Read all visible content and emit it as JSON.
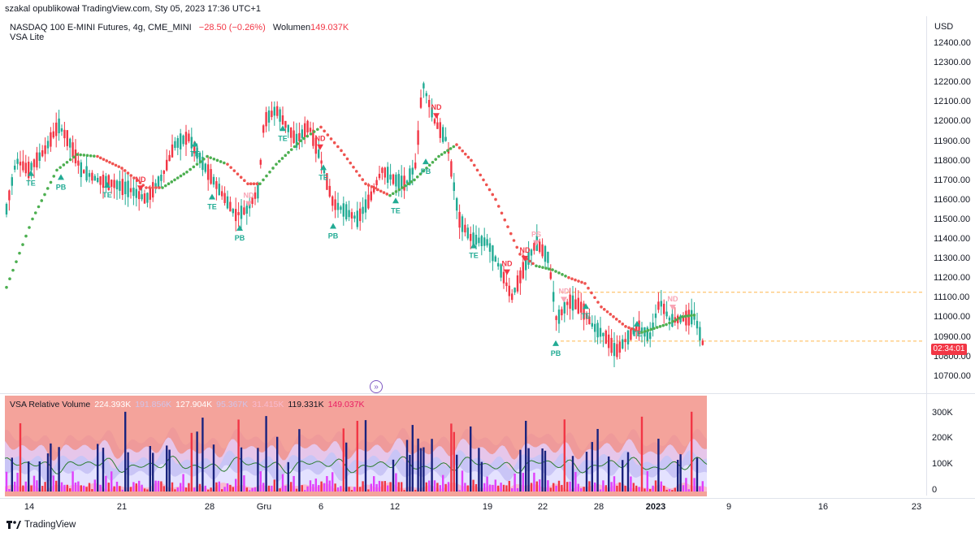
{
  "attribution": "szakal opublikował TradingView.com, Sty 05, 2023 17:36 UTC+1",
  "legend": {
    "symbol": "NASDAQ 100 E-MINI Futures, 4g, CME_MINI",
    "change": "−28.50 (−0.26%)",
    "volume_label": "Wolumen",
    "volume_value": "149.037K",
    "indicator": "VSA Lite"
  },
  "price_axis": {
    "currency": "USD",
    "ticks": [
      "12400.00",
      "12300.00",
      "12200.00",
      "12100.00",
      "12000.00",
      "11900.00",
      "11800.00",
      "11700.00",
      "11600.00",
      "11500.00",
      "11400.00",
      "11300.00",
      "11200.00",
      "11100.00",
      "11000.00",
      "10900.00",
      "10800.00",
      "10700.00"
    ],
    "countdown": "02:34:01"
  },
  "volume_pane": {
    "title": "VSA Relative Volume",
    "values": [
      {
        "text": "224.393K",
        "color": "#ffffff"
      },
      {
        "text": "191.856K",
        "color": "#d1c4e9"
      },
      {
        "text": "127.904K",
        "color": "#ffffff"
      },
      {
        "text": "95.367K",
        "color": "#d1c4e9"
      },
      {
        "text": "31.415K",
        "color": "#f8bbd0"
      },
      {
        "text": "119.331K",
        "color": "#131722"
      },
      {
        "text": "149.037K",
        "color": "#e91e63"
      }
    ],
    "ticks": [
      "300K",
      "200K",
      "100K",
      "0"
    ]
  },
  "time_axis": [
    {
      "label": "14",
      "bold": false
    },
    {
      "label": "21",
      "bold": false
    },
    {
      "label": "28",
      "bold": false
    },
    {
      "label": "Gru",
      "bold": false
    },
    {
      "label": "6",
      "bold": false
    },
    {
      "label": "12",
      "bold": false
    },
    {
      "label": "19",
      "bold": false
    },
    {
      "label": "22",
      "bold": false
    },
    {
      "label": "28",
      "bold": false
    },
    {
      "label": "2023",
      "bold": true
    },
    {
      "label": "9",
      "bold": false
    },
    {
      "label": "16",
      "bold": false
    },
    {
      "label": "23",
      "bold": false
    }
  ],
  "signals": [
    {
      "text": "TE",
      "color": "#22ab94"
    },
    {
      "text": "PB",
      "color": "#22ab94"
    },
    {
      "text": "TE",
      "color": "#22ab94"
    },
    {
      "text": "ND",
      "color": "#f23645"
    },
    {
      "text": "TE",
      "color": "#22ab94"
    },
    {
      "text": "TE",
      "color": "#22ab94"
    },
    {
      "text": "ND",
      "color": "#f8a5b5"
    },
    {
      "text": "PB",
      "color": "#22ab94"
    },
    {
      "text": "TE",
      "color": "#22ab94"
    },
    {
      "text": "ND",
      "color": "#f23645"
    },
    {
      "text": "TE",
      "color": "#22ab94"
    },
    {
      "text": "PB",
      "color": "#22ab94"
    },
    {
      "text": "TE",
      "color": "#22ab94"
    },
    {
      "text": "ND",
      "color": "#f23645"
    },
    {
      "text": "PB",
      "color": "#22ab94"
    },
    {
      "text": "TE",
      "color": "#22ab94"
    },
    {
      "text": "PS",
      "color": "#f8a5b5"
    },
    {
      "text": "ND",
      "color": "#f23645"
    },
    {
      "text": "ND",
      "color": "#f23645"
    },
    {
      "text": "ND",
      "color": "#f8a5b5"
    },
    {
      "text": "PB",
      "color": "#22ab94"
    },
    {
      "text": "TE",
      "color": "#22ab94"
    },
    {
      "text": "TE",
      "color": "#22ab94"
    },
    {
      "text": "ND",
      "color": "#f8a5b5"
    }
  ],
  "footer": {
    "brand": "TradingView"
  },
  "colors": {
    "up": "#22ab94",
    "down": "#f23645",
    "trail_up": "#4caf50",
    "trail_down": "#ef5350",
    "level": "#ffb74d"
  }
}
